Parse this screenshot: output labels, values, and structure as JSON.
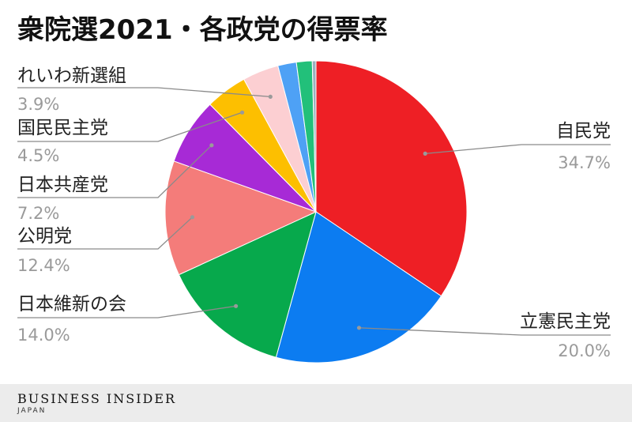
{
  "chart_data": {
    "type": "pie",
    "title": "衆院選2021・各政党の得票率",
    "slices": [
      {
        "label": "自民党",
        "value": 34.7,
        "value_label": "34.7%",
        "color": "#ee1f25"
      },
      {
        "label": "立憲民主党",
        "value": 20.0,
        "value_label": "20.0%",
        "color": "#0c7cf1"
      },
      {
        "label": "日本維新の会",
        "value": 14.0,
        "value_label": "14.0%",
        "color": "#07a94c"
      },
      {
        "label": "公明党",
        "value": 12.4,
        "value_label": "12.4%",
        "color": "#f47c7a"
      },
      {
        "label": "日本共産党",
        "value": 7.2,
        "value_label": "7.2%",
        "color": "#a72ad6"
      },
      {
        "label": "国民民主党",
        "value": 4.5,
        "value_label": "4.5%",
        "color": "#fdbf00"
      },
      {
        "label": "れいわ新選組",
        "value": 3.9,
        "value_label": "3.9%",
        "color": "#fccfd2"
      },
      {
        "label": "",
        "value": 2.0,
        "value_label": "",
        "color": "#4ea1f5"
      },
      {
        "label": "",
        "value": 1.7,
        "value_label": "",
        "color": "#22c07a"
      },
      {
        "label": "",
        "value": 0.4,
        "value_label": "",
        "color": "#9ab0c0"
      }
    ]
  },
  "footer": {
    "brand": "BUSINESS INSIDER",
    "sub": "JAPAN"
  }
}
